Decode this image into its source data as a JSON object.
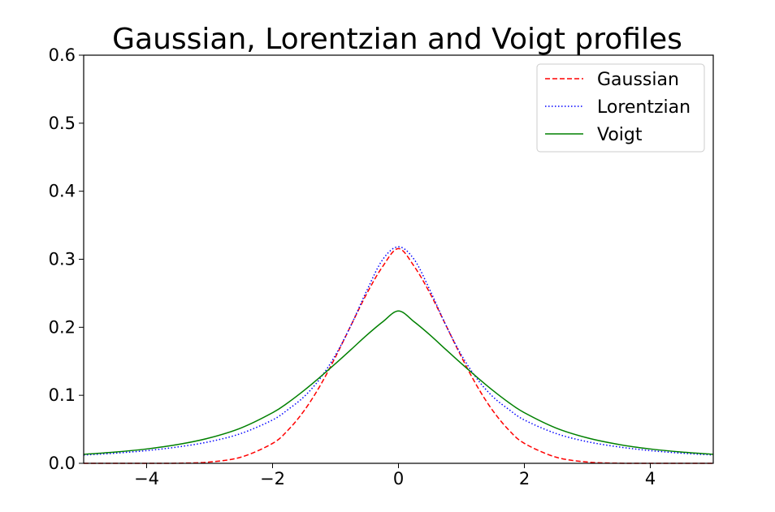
{
  "chart_data": {
    "type": "line",
    "title": "Gaussian, Lorentzian and Voigt profiles",
    "xlabel": "",
    "ylabel": "",
    "xlim": [
      -5,
      5
    ],
    "ylim": [
      0,
      0.6
    ],
    "grid": false,
    "legend_position": "top-right",
    "x_ticks": [
      -4,
      -2,
      0,
      2,
      4
    ],
    "x_tick_labels": [
      "−4",
      "−2",
      "0",
      "2",
      "4"
    ],
    "y_ticks": [
      0.0,
      0.1,
      0.2,
      0.3,
      0.4,
      0.5,
      0.6
    ],
    "y_tick_labels": [
      "0.0",
      "0.1",
      "0.2",
      "0.3",
      "0.4",
      "0.5",
      "0.6"
    ],
    "x": [
      -5,
      -4.5,
      -4,
      -3.5,
      -3,
      -2.5,
      -2,
      -1.75,
      -1.5,
      -1.25,
      -1,
      -0.75,
      -0.5,
      -0.25,
      0,
      0.25,
      0.5,
      0.75,
      1,
      1.25,
      1.5,
      1.75,
      2,
      2.5,
      3,
      3.5,
      4,
      4.5,
      5
    ],
    "series": [
      {
        "name": "Gaussian",
        "color": "#ff0000",
        "style": "dashed",
        "values": [
          0.0,
          0.0,
          0.0,
          0.0002,
          0.0019,
          0.0091,
          0.0293,
          0.0492,
          0.0772,
          0.1132,
          0.1564,
          0.2036,
          0.2501,
          0.2895,
          0.3157,
          0.2895,
          0.2501,
          0.2036,
          0.1564,
          0.1132,
          0.0772,
          0.0492,
          0.0293,
          0.0091,
          0.0019,
          0.0002,
          0.0,
          0.0,
          0.0
        ]
      },
      {
        "name": "Lorentzian",
        "color": "#0000ff",
        "style": "dotted",
        "values": [
          0.0122,
          0.0149,
          0.0187,
          0.0241,
          0.0318,
          0.0439,
          0.0637,
          0.0794,
          0.0979,
          0.124,
          0.1592,
          0.2037,
          0.2546,
          0.2996,
          0.3183,
          0.2996,
          0.2546,
          0.2037,
          0.1592,
          0.124,
          0.0979,
          0.0794,
          0.0637,
          0.0439,
          0.0318,
          0.0241,
          0.0187,
          0.0149,
          0.0122
        ]
      },
      {
        "name": "Voigt",
        "color": "#008000",
        "style": "solid",
        "values": [
          0.0133,
          0.0165,
          0.0211,
          0.0277,
          0.0374,
          0.052,
          0.0744,
          0.0895,
          0.1071,
          0.1264,
          0.1466,
          0.1675,
          0.1887,
          0.208,
          0.2239,
          0.208,
          0.1887,
          0.1675,
          0.1466,
          0.1264,
          0.1071,
          0.0895,
          0.0744,
          0.052,
          0.0374,
          0.0277,
          0.0211,
          0.0165,
          0.0133
        ]
      }
    ]
  }
}
